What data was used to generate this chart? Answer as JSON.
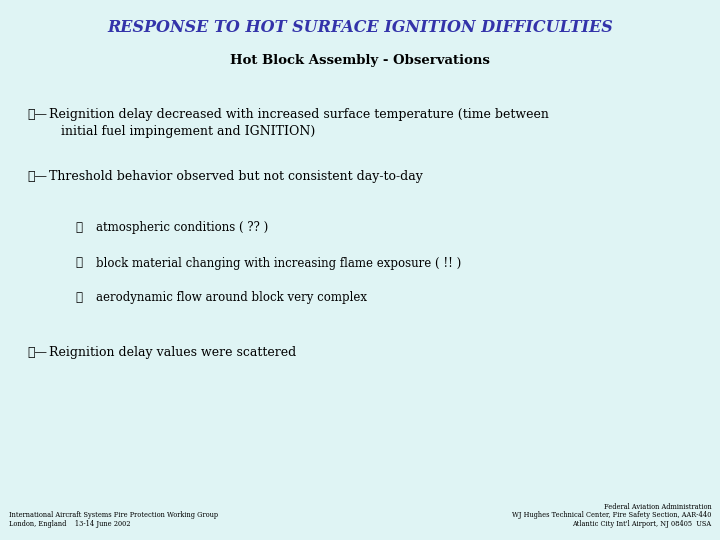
{
  "title": "RESPONSE TO HOT SURFACE IGNITION DIFFICULTIES",
  "subtitle": "Hot Block Assembly - Observations",
  "bg_color": "#dff4f4",
  "title_color": "#3333aa",
  "subtitle_color": "#000000",
  "body_color": "#000000",
  "bullet_symbol": "✂—",
  "sub_bullet_symbol": "ℵ",
  "bullets": [
    {
      "text": "Reignition delay decreased with increased surface temperature (time between\n   initial fuel impingement and IGNITION)",
      "level": 0
    },
    {
      "text": "Threshold behavior observed but not consistent day-to-day",
      "level": 0
    },
    {
      "text": "atmospheric conditions ( ?? )",
      "level": 1
    },
    {
      "text": "block material changing with increasing flame exposure ( !! )",
      "level": 1
    },
    {
      "text": "aerodynamic flow around block very complex",
      "level": 1
    },
    {
      "text": "Reignition delay values were scattered",
      "level": 0
    }
  ],
  "footer_left_line1": "International Aircraft Systems Fire Protection Working Group",
  "footer_left_line2": "London, England    13-14 June 2002",
  "footer_right_line1": "Federal Aviation Administration",
  "footer_right_line2": "WJ Hughes Technical Center, Fire Safety Section, AAR-440",
  "footer_right_line3": "Atlantic City Int'l Airport, NJ 08405  USA",
  "title_fontsize": 11.5,
  "subtitle_fontsize": 9.5,
  "body_fontsize": 9.0,
  "sub_fontsize": 8.5,
  "footer_fontsize": 4.8
}
